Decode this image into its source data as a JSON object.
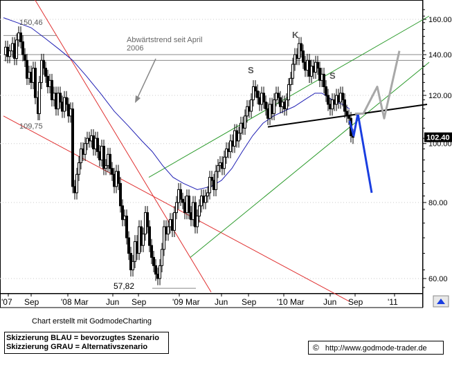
{
  "chart_data": {
    "type": "candlestick",
    "y_axis": {
      "scale": "log",
      "ticks": [
        60,
        80,
        100,
        120,
        140,
        160
      ]
    },
    "x_ticks": [
      "'07",
      "Sep",
      "'08 Mar",
      "Jun",
      "Sep",
      "'09 Mar",
      "Jun",
      "Sep",
      "'10 Mar",
      "Jun",
      "Sep",
      "'11"
    ],
    "last_price_label": "102.40",
    "last_price": 102.4,
    "price_series": [
      [
        0,
        140
      ],
      [
        3,
        144
      ],
      [
        6,
        139
      ],
      [
        9,
        142
      ],
      [
        13,
        146
      ],
      [
        16,
        138
      ],
      [
        19,
        148
      ],
      [
        22,
        152
      ],
      [
        25,
        147
      ],
      [
        28,
        140
      ],
      [
        31,
        137
      ],
      [
        34,
        128
      ],
      [
        37,
        131
      ],
      [
        40,
        126
      ],
      [
        43,
        133
      ],
      [
        46,
        119
      ],
      [
        50,
        112
      ],
      [
        52,
        126
      ],
      [
        55,
        137
      ],
      [
        58,
        133
      ],
      [
        61,
        129
      ],
      [
        64,
        124
      ],
      [
        67,
        127
      ],
      [
        70,
        118
      ],
      [
        73,
        121
      ],
      [
        76,
        114
      ],
      [
        79,
        121
      ],
      [
        82,
        117
      ],
      [
        85,
        113
      ],
      [
        88,
        119
      ],
      [
        91,
        116
      ],
      [
        94,
        111
      ],
      [
        97,
        114
      ],
      [
        100,
        85
      ],
      [
        103,
        83
      ],
      [
        106,
        89
      ],
      [
        109,
        93
      ],
      [
        112,
        98
      ],
      [
        115,
        96
      ],
      [
        118,
        100
      ],
      [
        121,
        102
      ],
      [
        124,
        101
      ],
      [
        127,
        103
      ],
      [
        130,
        98
      ],
      [
        133,
        102
      ],
      [
        136,
        97
      ],
      [
        139,
        94
      ],
      [
        142,
        99
      ],
      [
        145,
        91
      ],
      [
        148,
        92
      ],
      [
        151,
        96
      ],
      [
        154,
        91
      ],
      [
        157,
        89
      ],
      [
        160,
        85
      ],
      [
        163,
        90
      ],
      [
        166,
        86
      ],
      [
        169,
        79
      ],
      [
        172,
        75
      ],
      [
        175,
        76
      ],
      [
        178,
        70
      ],
      [
        181,
        66
      ],
      [
        184,
        62
      ],
      [
        187,
        64
      ],
      [
        190,
        69
      ],
      [
        193,
        66
      ],
      [
        196,
        73
      ],
      [
        199,
        68
      ],
      [
        202,
        71
      ],
      [
        205,
        77
      ],
      [
        208,
        73
      ],
      [
        211,
        68
      ],
      [
        214,
        65
      ],
      [
        217,
        63
      ],
      [
        220,
        61
      ],
      [
        223,
        60
      ],
      [
        226,
        63
      ],
      [
        229,
        67
      ],
      [
        232,
        73
      ],
      [
        235,
        71
      ],
      [
        238,
        73
      ],
      [
        241,
        75
      ],
      [
        244,
        72
      ],
      [
        247,
        77
      ],
      [
        250,
        80
      ],
      [
        253,
        84
      ],
      [
        256,
        81
      ],
      [
        259,
        80
      ],
      [
        262,
        77
      ],
      [
        265,
        82
      ],
      [
        268,
        77
      ],
      [
        271,
        75
      ],
      [
        274,
        80
      ],
      [
        277,
        73
      ],
      [
        280,
        76
      ],
      [
        283,
        79
      ],
      [
        286,
        82
      ],
      [
        289,
        80
      ],
      [
        292,
        82
      ],
      [
        295,
        83
      ],
      [
        298,
        88
      ],
      [
        301,
        87
      ],
      [
        304,
        84
      ],
      [
        307,
        90
      ],
      [
        310,
        92
      ],
      [
        313,
        93
      ],
      [
        316,
        91
      ],
      [
        319,
        95
      ],
      [
        322,
        98
      ],
      [
        325,
        97
      ],
      [
        328,
        101
      ],
      [
        331,
        99
      ],
      [
        334,
        105
      ],
      [
        337,
        101
      ],
      [
        340,
        104
      ],
      [
        343,
        108
      ],
      [
        346,
        106
      ],
      [
        349,
        111
      ],
      [
        352,
        115
      ],
      [
        355,
        113
      ],
      [
        358,
        118
      ],
      [
        361,
        124
      ],
      [
        364,
        122
      ],
      [
        367,
        119
      ],
      [
        370,
        116
      ],
      [
        373,
        121
      ],
      [
        376,
        117
      ],
      [
        379,
        114
      ],
      [
        382,
        110
      ],
      [
        385,
        116
      ],
      [
        388,
        112
      ],
      [
        391,
        118
      ],
      [
        394,
        121
      ],
      [
        397,
        119
      ],
      [
        400,
        115
      ],
      [
        403,
        117
      ],
      [
        406,
        114
      ],
      [
        409,
        118
      ],
      [
        412,
        125
      ],
      [
        415,
        128
      ],
      [
        418,
        135
      ],
      [
        421,
        140
      ],
      [
        424,
        138
      ],
      [
        427,
        146
      ],
      [
        430,
        142
      ],
      [
        433,
        136
      ],
      [
        436,
        132
      ],
      [
        439,
        137
      ],
      [
        442,
        129
      ],
      [
        445,
        134
      ],
      [
        448,
        131
      ],
      [
        451,
        136
      ],
      [
        454,
        133
      ],
      [
        457,
        127
      ],
      [
        460,
        130
      ],
      [
        463,
        124
      ],
      [
        466,
        120
      ],
      [
        469,
        116
      ],
      [
        472,
        114
      ],
      [
        475,
        118
      ],
      [
        478,
        116
      ],
      [
        481,
        120
      ],
      [
        484,
        117
      ],
      [
        487,
        121
      ],
      [
        490,
        118
      ],
      [
        493,
        113
      ],
      [
        496,
        111
      ],
      [
        499,
        110
      ],
      [
        502,
        103
      ],
      [
        505,
        102.4
      ]
    ],
    "moving_average": [
      [
        0,
        161
      ],
      [
        20,
        158
      ],
      [
        40,
        155
      ],
      [
        60,
        149
      ],
      [
        80,
        143
      ],
      [
        100,
        137
      ],
      [
        120,
        129
      ],
      [
        140,
        121
      ],
      [
        160,
        113
      ],
      [
        180,
        107
      ],
      [
        200,
        101
      ],
      [
        215,
        97
      ],
      [
        230,
        92
      ],
      [
        245,
        88
      ],
      [
        260,
        86
      ],
      [
        280,
        84
      ],
      [
        300,
        85
      ],
      [
        315,
        87
      ],
      [
        330,
        91
      ],
      [
        345,
        97
      ],
      [
        360,
        103
      ],
      [
        375,
        108
      ],
      [
        390,
        111
      ],
      [
        405,
        113
      ],
      [
        420,
        115
      ],
      [
        435,
        118
      ],
      [
        450,
        121
      ],
      [
        460,
        121
      ],
      [
        470,
        119
      ],
      [
        480,
        117
      ],
      [
        490,
        116
      ],
      [
        500,
        114
      ]
    ],
    "scenarios": {
      "blue": [
        [
          500,
          109
        ],
        [
          506,
          103
        ],
        [
          512,
          112
        ],
        [
          532,
          83
        ]
      ],
      "gray": [
        [
          508,
          112
        ],
        [
          520,
          112
        ],
        [
          540,
          124
        ],
        [
          550,
          110
        ],
        [
          572,
          142
        ]
      ]
    },
    "trendlines": {
      "red": [
        {
          "from": [
            0,
            210
          ],
          "to": [
            300,
            57
          ]
        },
        {
          "from": [
            0,
            111
          ],
          "to": [
            500,
            55
          ]
        }
      ],
      "green": [
        {
          "from": [
            210,
            88
          ],
          "to": [
            615,
            162
          ]
        },
        {
          "from": [
            270,
            65
          ],
          "to": [
            615,
            136
          ]
        }
      ],
      "black_neckline": {
        "from": [
          382,
          106.5
        ],
        "to": [
          612,
          116
        ]
      },
      "horizontal": [
        {
          "y": 140,
          "from": 0,
          "to": 608
        },
        {
          "y": 137,
          "from": 0,
          "to": 608
        },
        {
          "y": 150.5,
          "from": 0,
          "to": 77
        },
        {
          "y": 57.82,
          "from": 215,
          "to": 278
        }
      ]
    },
    "annotations": [
      {
        "text": "150,46"
      },
      {
        "text": "109,75"
      },
      {
        "text": "57,82"
      },
      {
        "text": "S"
      },
      {
        "text": "K"
      },
      {
        "text": "S"
      }
    ],
    "trend_note": [
      "Abwärtstrend seit April",
      "2006"
    ]
  },
  "footer": {
    "credit": "Chart erstellt mit GodmodeCharting",
    "legend": [
      "Skizzierung BLAU = bevorzugtes Szenario",
      "Skizzierung GRAU = Alternativszenario"
    ],
    "copyright_symbol": "©",
    "url": "http://www.godmode-trader.de"
  },
  "colors": {
    "price": "#000000",
    "moving_average": "#1f1fb4",
    "red_channel": "#e03030",
    "green_channel": "#2a9a2a",
    "blue_scenario": "#1a3ee0",
    "gray_scenario": "#a8a8a8",
    "price_tag_bg": "#000000"
  }
}
